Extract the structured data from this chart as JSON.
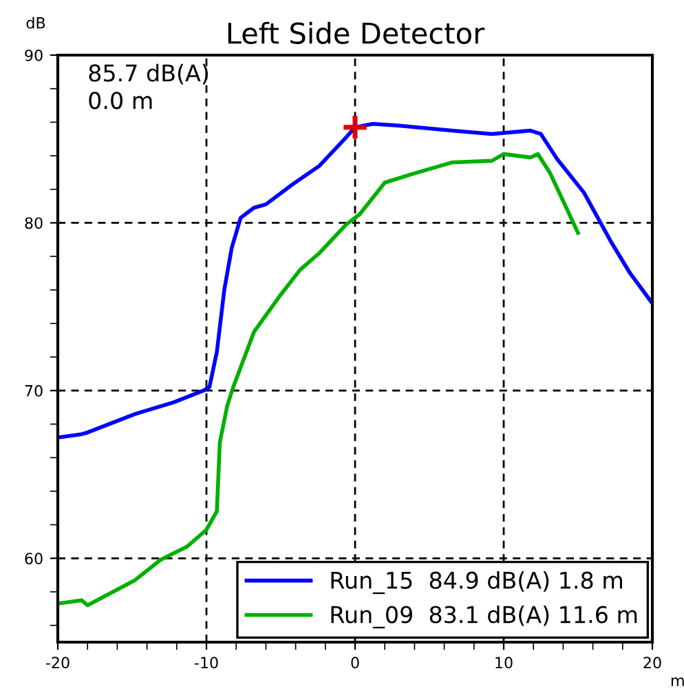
{
  "chart_data": {
    "type": "line",
    "title": "Left Side Detector",
    "xlabel": "m",
    "ylabel": "dB",
    "x": [
      -20,
      -18.4,
      -18,
      -14.8,
      -12.2,
      -10.2,
      -9.8,
      -9.3,
      -8.8,
      -8.3,
      -7.7,
      -6.8,
      -6.0,
      -4.2,
      -2.4,
      -0.6,
      0,
      1.2,
      2.9,
      6.5,
      9.2,
      11.8,
      12.5,
      13.6,
      15.4,
      17.2,
      18.5,
      20
    ],
    "series": [
      {
        "name": "Run_15  84.9 dB(A) 1.8 m",
        "color": "#0000ff",
        "values": [
          67.2,
          67.4,
          67.5,
          68.6,
          69.3,
          70.0,
          70.2,
          72.3,
          76.0,
          78.5,
          80.3,
          80.9,
          81.1,
          82.3,
          83.4,
          85.1,
          85.7,
          85.9,
          85.8,
          85.5,
          85.3,
          85.5,
          85.3,
          83.8,
          81.8,
          78.9,
          77.0,
          75.2
        ]
      },
      {
        "name": "Run_09  83.1 dB(A) 11.6 m",
        "color": "#00b000",
        "x": [
          -20,
          -18.4,
          -18,
          -14.8,
          -13.1,
          -11.3,
          -10,
          -9.3,
          -9.1,
          -8.6,
          -8.2,
          -6.8,
          -5.1,
          -3.7,
          -2.4,
          -0.6,
          0.3,
          2.0,
          3.8,
          6.5,
          9.2,
          10,
          11.8,
          12.3,
          13.1,
          14,
          15
        ],
        "values": [
          57.3,
          57.5,
          57.2,
          58.7,
          59.9,
          60.7,
          61.7,
          62.8,
          66.9,
          69.1,
          70.2,
          73.5,
          75.6,
          77.2,
          78.2,
          79.9,
          80.5,
          82.4,
          82.9,
          83.6,
          83.7,
          84.1,
          83.9,
          84.1,
          83.0,
          81.3,
          79.4
        ]
      },
      {
        "type": "scatter",
        "color": "#dd0000",
        "marker": "cross",
        "x": [
          0
        ],
        "values": [
          85.7
        ]
      }
    ],
    "annotations": [
      "85.7 dB(A)\n0.0 m"
    ],
    "xlim": [
      -20,
      20
    ],
    "xticks": [
      -20,
      -10,
      0,
      10,
      20
    ],
    "ylim": [
      55,
      90
    ],
    "yticks": [
      60,
      70,
      80,
      90
    ],
    "grid": true,
    "legend": "bottom right",
    "line_style": "solid",
    "marker": "none"
  }
}
